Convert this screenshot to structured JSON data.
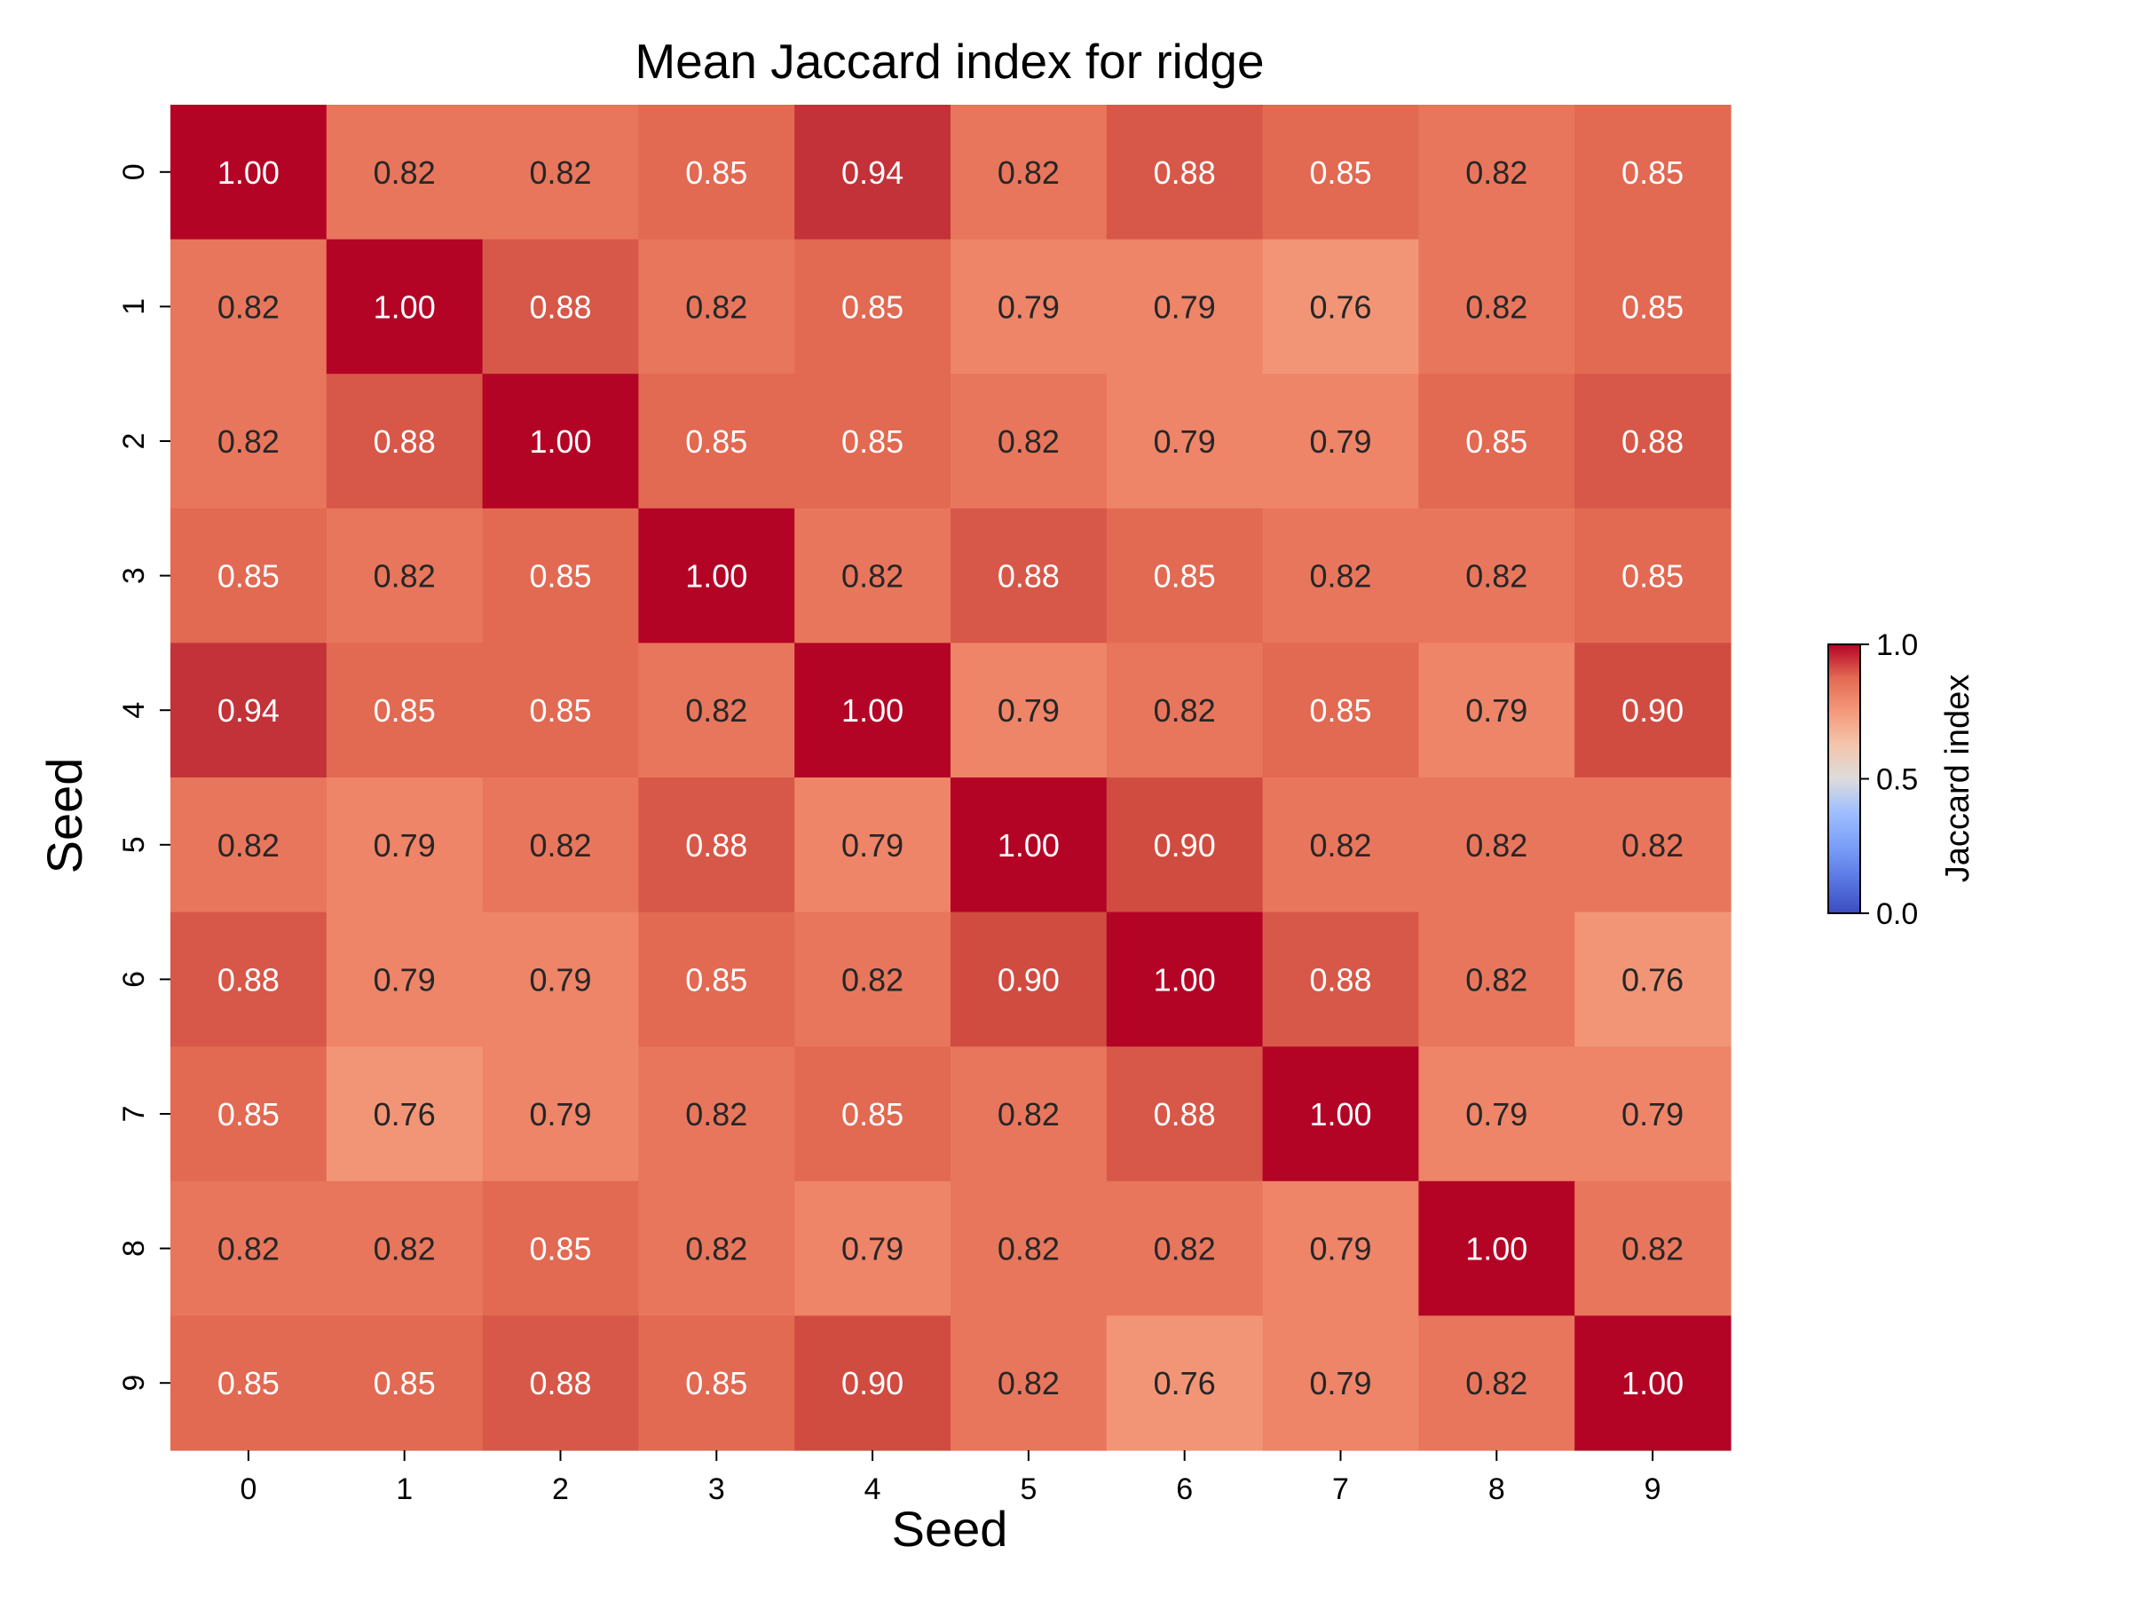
{
  "chart_data": {
    "type": "heatmap",
    "title": "Mean Jaccard index for ridge",
    "xlabel": "Seed",
    "ylabel": "Seed",
    "x_categories": [
      "0",
      "1",
      "2",
      "3",
      "4",
      "5",
      "6",
      "7",
      "8",
      "9"
    ],
    "y_categories": [
      "0",
      "1",
      "2",
      "3",
      "4",
      "5",
      "6",
      "7",
      "8",
      "9"
    ],
    "values": [
      [
        1.0,
        0.82,
        0.82,
        0.85,
        0.94,
        0.82,
        0.88,
        0.85,
        0.82,
        0.85
      ],
      [
        0.82,
        1.0,
        0.88,
        0.82,
        0.85,
        0.79,
        0.79,
        0.76,
        0.82,
        0.85
      ],
      [
        0.82,
        0.88,
        1.0,
        0.85,
        0.85,
        0.82,
        0.79,
        0.79,
        0.85,
        0.88
      ],
      [
        0.85,
        0.82,
        0.85,
        1.0,
        0.82,
        0.88,
        0.85,
        0.82,
        0.82,
        0.85
      ],
      [
        0.94,
        0.85,
        0.85,
        0.82,
        1.0,
        0.79,
        0.82,
        0.85,
        0.79,
        0.9
      ],
      [
        0.82,
        0.79,
        0.82,
        0.88,
        0.79,
        1.0,
        0.9,
        0.82,
        0.82,
        0.82
      ],
      [
        0.88,
        0.79,
        0.79,
        0.85,
        0.82,
        0.9,
        1.0,
        0.88,
        0.82,
        0.76
      ],
      [
        0.85,
        0.76,
        0.79,
        0.82,
        0.85,
        0.82,
        0.88,
        1.0,
        0.79,
        0.79
      ],
      [
        0.82,
        0.82,
        0.85,
        0.82,
        0.79,
        0.82,
        0.82,
        0.79,
        1.0,
        0.82
      ],
      [
        0.85,
        0.85,
        0.88,
        0.85,
        0.9,
        0.82,
        0.76,
        0.79,
        0.82,
        1.0
      ]
    ],
    "value_format": "2 decimals",
    "colormap": "coolwarm",
    "vmin": 0.0,
    "vmax": 1.0,
    "colorbar": {
      "label": "Jaccard index",
      "ticks": [
        "0.0",
        "0.5",
        "1.0"
      ],
      "tick_values": [
        0.0,
        0.5,
        1.0
      ],
      "placement": "right"
    },
    "text_colors": {
      "dark_cell": "#ffffff",
      "light_cell": "#262626"
    },
    "grid": false
  }
}
